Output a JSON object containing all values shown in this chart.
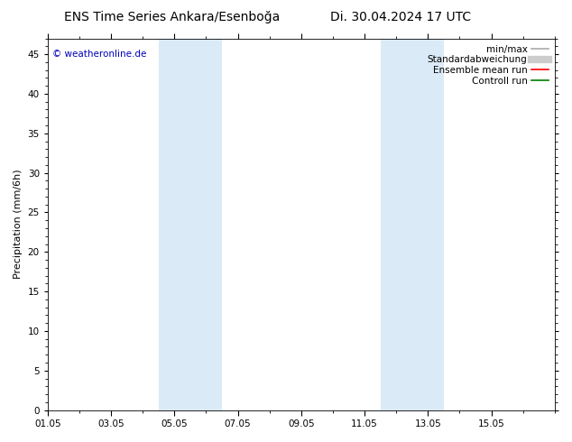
{
  "title": "ENS Time Series Ankara/Esenboğa",
  "title_right": "Di. 30.04.2024 17 UTC",
  "ylabel": "Precipitation (mm/6h)",
  "copyright": "© weatheronline.de",
  "xlim_start": 0,
  "xlim_end": 16,
  "ylim": [
    0,
    47
  ],
  "yticks": [
    0,
    5,
    10,
    15,
    20,
    25,
    30,
    35,
    40,
    45
  ],
  "xtick_labels": [
    "01.05",
    "03.05",
    "05.05",
    "07.05",
    "09.05",
    "11.05",
    "13.05",
    "15.05"
  ],
  "xtick_positions": [
    0,
    2,
    4,
    6,
    8,
    10,
    12,
    14
  ],
  "shade_bands": [
    {
      "x_start": 3.5,
      "x_end": 5.5
    },
    {
      "x_start": 10.5,
      "x_end": 12.5
    }
  ],
  "shade_color": "#daeaf7",
  "background_color": "#ffffff",
  "legend_items": [
    {
      "label": "min/max",
      "color": "#aaaaaa",
      "lw": 1.2,
      "style": "solid",
      "type": "line"
    },
    {
      "label": "Standardabweichung",
      "color": "#cccccc",
      "lw": 6,
      "style": "solid",
      "type": "line"
    },
    {
      "label": "Ensemble mean run",
      "color": "#ff0000",
      "lw": 1.2,
      "style": "solid",
      "type": "line"
    },
    {
      "label": "Controll run",
      "color": "#008000",
      "lw": 1.2,
      "style": "solid",
      "type": "line"
    }
  ],
  "title_fontsize": 10,
  "axis_fontsize": 8,
  "tick_fontsize": 7.5,
  "copyright_color": "#0000bb",
  "copyright_fontsize": 7.5
}
